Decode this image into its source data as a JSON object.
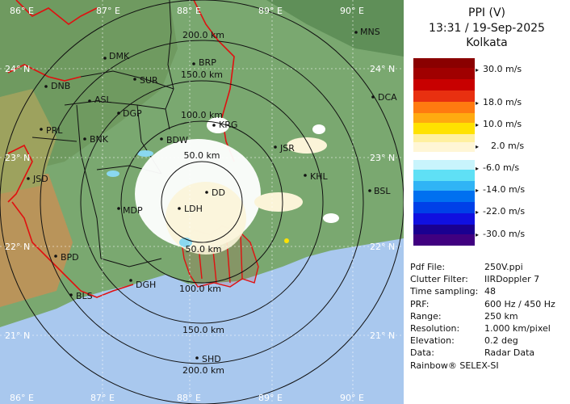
{
  "product": {
    "title": "PPI (V)",
    "datetime": "13:31 / 19-Sep-2025",
    "station": "Kolkata"
  },
  "map": {
    "lon_labels": [
      "86° E",
      "87° E",
      "88° E",
      "89° E",
      "90° E"
    ],
    "lat_labels": [
      "24° N",
      "23° N",
      "22° N",
      "21° N"
    ],
    "ranges": [
      "50.0 km",
      "100.0 km",
      "150.0 km",
      "200.0 km"
    ],
    "places": [
      "MNS",
      "DMK",
      "BRP",
      "DNB",
      "SUR",
      "DCA",
      "ASL",
      "DGP",
      "KRG",
      "PRL",
      "BNK",
      "BDW",
      "JSR",
      "JSD",
      "KHL",
      "BSL",
      "DD",
      "MDP",
      "LDH",
      "BPD",
      "DGH",
      "BLS",
      "SHD"
    ]
  },
  "legend": {
    "labels": [
      "30.0 m/s",
      "18.0 m/s",
      "10.0 m/s",
      "2.0 m/s",
      "-6.0 m/s",
      "-14.0 m/s",
      "-22.0 m/s",
      "-30.0 m/s"
    ],
    "colors": [
      "#c80000",
      "#ff7a10",
      "#ffe200",
      "#fff6d6",
      "#5fe0f5",
      "#0070f0",
      "#1010e0",
      "#400080"
    ]
  },
  "info": [
    {
      "key": "Pdf File:",
      "value": "250V.ppi"
    },
    {
      "key": "Clutter Filter:",
      "value": "IIRDoppler 7"
    },
    {
      "key": "Time sampling:",
      "value": "48"
    },
    {
      "key": "PRF:",
      "value": "600 Hz / 450 Hz"
    },
    {
      "key": "Range:",
      "value": "250 km"
    },
    {
      "key": "Resolution:",
      "value": "1.000 km/pixel"
    },
    {
      "key": "Elevation:",
      "value": "0.2 deg"
    },
    {
      "key": "Data:",
      "value": "Radar Data"
    }
  ],
  "footer": "Rainbow® SELEX-SI"
}
